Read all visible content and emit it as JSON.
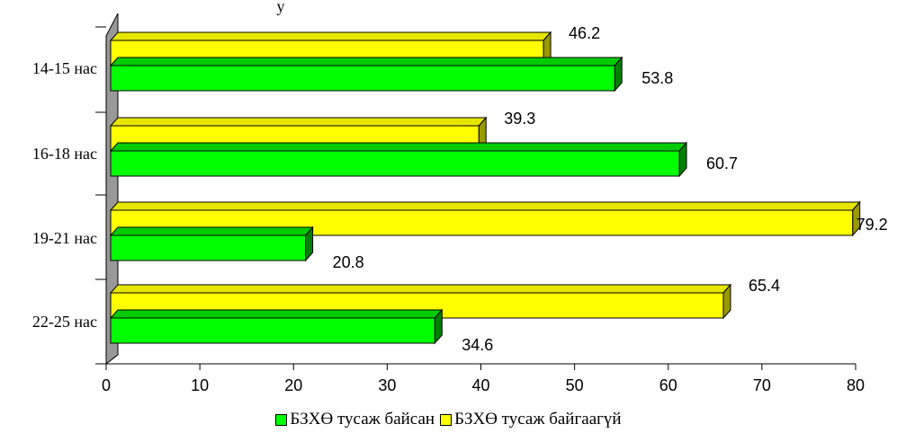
{
  "chart_data": {
    "type": "bar",
    "orientation": "horizontal",
    "three_d": true,
    "title": "у",
    "categories": [
      "14-15 нас",
      "16-18 нас",
      "19-21 нас",
      "22-25 нас"
    ],
    "series": [
      {
        "name": "БЗХӨ тусаж байсан",
        "color": "#00FF00",
        "values": [
          53.8,
          60.7,
          20.8,
          34.6
        ]
      },
      {
        "name": "БЗХӨ тусаж байгаагүй",
        "color": "#FFFF00",
        "values": [
          46.2,
          39.3,
          79.2,
          65.4
        ]
      }
    ],
    "xlim": [
      0,
      80
    ],
    "xticks": [
      "0",
      "10",
      "20",
      "30",
      "40",
      "50",
      "60",
      "70",
      "80"
    ],
    "grid": false,
    "legend_position": "bottom"
  }
}
